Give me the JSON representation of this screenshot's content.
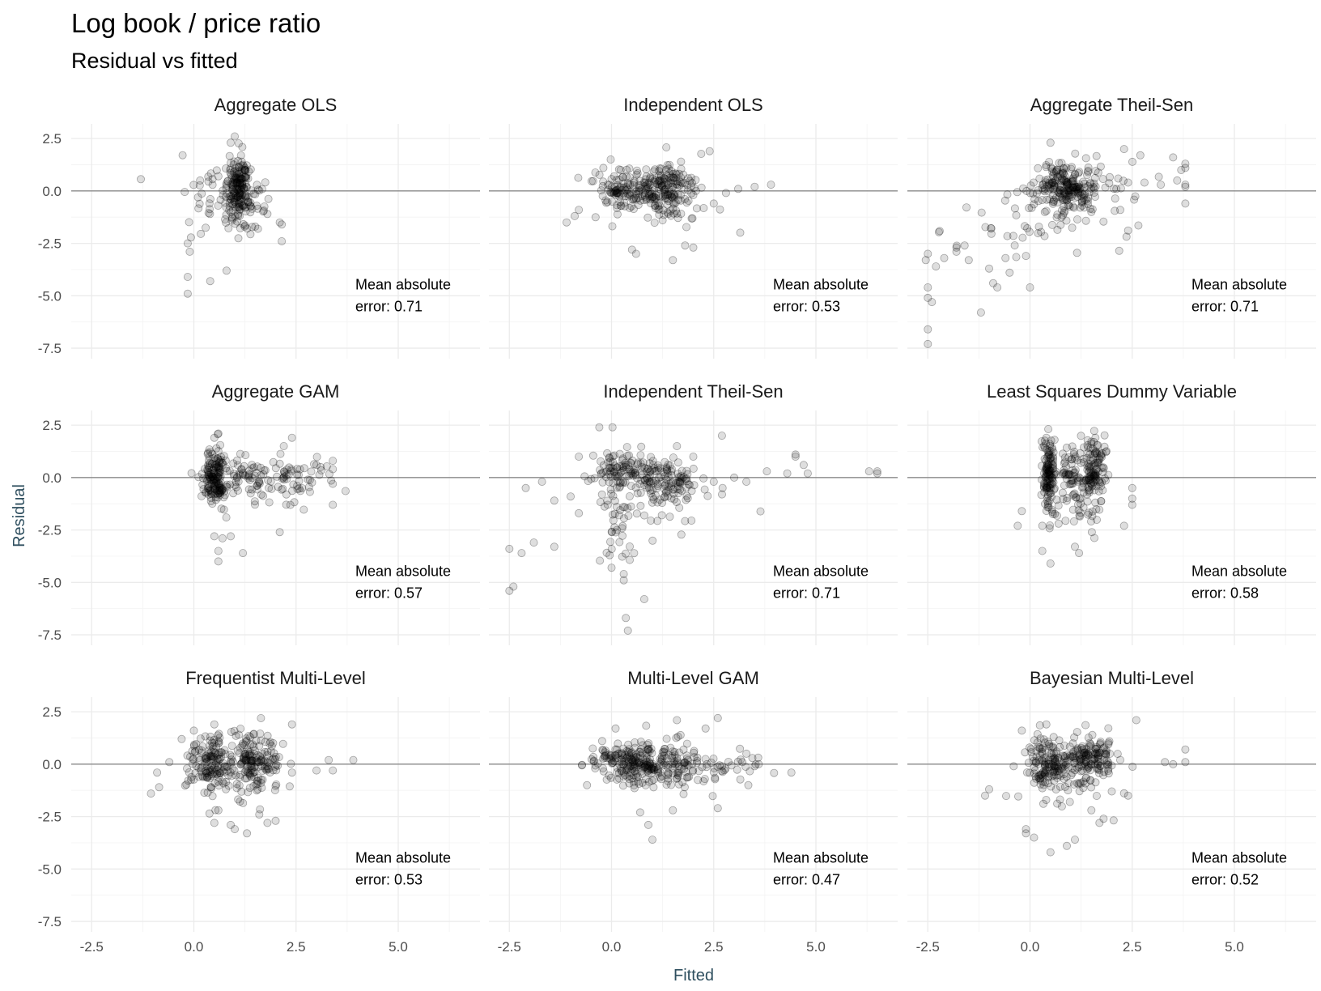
{
  "title": "Log book / price ratio",
  "subtitle": "Residual vs fitted",
  "colors": {
    "background": "#ffffff",
    "grid": "#ebebeb",
    "zero_line": "#8a8a8a",
    "point": "#000000",
    "axis_title": "#2f4f5f"
  },
  "chart_data": {
    "type": "scatter",
    "layout": "facet-grid 3x3",
    "xlabel": "Fitted",
    "ylabel": "Residual",
    "xlim": [
      -3,
      7
    ],
    "ylim": [
      -8,
      3.2
    ],
    "x_ticks": [
      "-2.5",
      "0.0",
      "2.5",
      "5.0"
    ],
    "x_tick_values": [
      -2.5,
      0.0,
      2.5,
      5.0
    ],
    "y_ticks": [
      "2.5",
      "0.0",
      "-2.5",
      "-5.0",
      "-7.5"
    ],
    "y_tick_values": [
      2.5,
      0.0,
      -2.5,
      -5.0,
      -7.5
    ],
    "reference_line": 0,
    "grid": true,
    "point_alpha": "low (semi-transparent)",
    "facets": [
      {
        "name": "Aggregate OLS",
        "mae_line1": "Mean absolute",
        "mae_line2": "error: 0.71",
        "clusters": [
          {
            "cx": 1.1,
            "cy": 0.0,
            "sx": 0.14,
            "sy": 0.85,
            "n": 170
          },
          {
            "cx": 1.3,
            "cy": -0.5,
            "sx": 0.3,
            "sy": 0.7,
            "n": 40
          },
          {
            "cx": 0.5,
            "cy": -0.9,
            "sx": 0.45,
            "sy": 1.0,
            "n": 35
          }
        ],
        "points": [
          [
            -0.15,
            -4.9
          ],
          [
            -0.15,
            -4.1
          ],
          [
            0.4,
            -4.3
          ],
          [
            0.8,
            -3.8
          ],
          [
            -0.15,
            -2.5
          ],
          [
            -0.1,
            -2.9
          ],
          [
            2.15,
            -2.4
          ],
          [
            2.1,
            -1.5
          ],
          [
            2.15,
            -1.6
          ],
          [
            0.9,
            2.3
          ],
          [
            1.0,
            2.6
          ],
          [
            0.6,
            0.7
          ],
          [
            1.5,
            -1.7
          ],
          [
            1.8,
            -1.1
          ]
        ]
      },
      {
        "name": "Independent OLS",
        "mae_line1": "Mean absolute",
        "mae_line2": "error: 0.53",
        "clusters": [
          {
            "cx": 0.3,
            "cy": 0.1,
            "sx": 0.35,
            "sy": 0.45,
            "n": 120
          },
          {
            "cx": 1.45,
            "cy": 0.1,
            "sx": 0.3,
            "sy": 0.6,
            "n": 130
          },
          {
            "cx": 1.0,
            "cy": -0.5,
            "sx": 0.8,
            "sy": 0.8,
            "n": 50
          }
        ],
        "points": [
          [
            -1.1,
            -1.5
          ],
          [
            -0.8,
            -0.9
          ],
          [
            -0.9,
            -1.2
          ],
          [
            3.5,
            0.2
          ],
          [
            3.9,
            0.3
          ],
          [
            3.1,
            0.1
          ],
          [
            2.8,
            -0.1
          ],
          [
            2.0,
            -0.2
          ],
          [
            2.5,
            -0.6
          ],
          [
            1.5,
            -3.3
          ],
          [
            0.6,
            -3.0
          ],
          [
            0.5,
            -2.8
          ],
          [
            1.8,
            -2.6
          ],
          [
            2.0,
            -2.7
          ],
          [
            2.4,
            1.9
          ],
          [
            1.7,
            1.4
          ],
          [
            -0.2,
            1.1
          ]
        ]
      },
      {
        "name": "Aggregate Theil-Sen",
        "mae_line1": "Mean absolute",
        "mae_line2": "error: 0.71",
        "clusters": [
          {
            "cx": 0.85,
            "cy": 0.2,
            "sx": 0.35,
            "sy": 0.5,
            "n": 180
          },
          {
            "cx": 1.3,
            "cy": -0.2,
            "sx": 0.8,
            "sy": 0.8,
            "n": 60
          },
          {
            "cx": 0.0,
            "cy": -1.4,
            "sx": 0.9,
            "sy": 0.9,
            "n": 45
          }
        ],
        "points": [
          [
            -2.5,
            -7.3
          ],
          [
            -2.5,
            -6.6
          ],
          [
            -2.5,
            -5.1
          ],
          [
            -2.4,
            -5.3
          ],
          [
            -2.5,
            -4.6
          ],
          [
            -2.55,
            -3.3
          ],
          [
            -2.5,
            -3.0
          ],
          [
            -2.3,
            -3.6
          ],
          [
            -2.1,
            -3.2
          ],
          [
            -1.8,
            -2.9
          ],
          [
            -1.8,
            -2.7
          ],
          [
            -1.6,
            -2.6
          ],
          [
            -1.2,
            -5.8
          ],
          [
            -0.8,
            -4.6
          ],
          [
            -1.0,
            -3.7
          ],
          [
            -1.5,
            -3.3
          ],
          [
            -0.9,
            -4.4
          ],
          [
            -0.6,
            -3.2
          ],
          [
            -0.5,
            -3.9
          ],
          [
            0.0,
            -4.6
          ],
          [
            -0.1,
            -3.1
          ],
          [
            3.8,
            1.1
          ],
          [
            3.8,
            1.3
          ],
          [
            3.8,
            0.3
          ],
          [
            3.8,
            0.2
          ],
          [
            3.8,
            -0.6
          ],
          [
            3.7,
            1.0
          ],
          [
            3.6,
            0.5
          ],
          [
            3.2,
            0.3
          ],
          [
            3.5,
            1.6
          ],
          [
            2.7,
            1.7
          ],
          [
            2.3,
            2.0
          ],
          [
            2.8,
            0.4
          ],
          [
            2.4,
            0.4
          ],
          [
            0.5,
            2.3
          ]
        ]
      },
      {
        "name": "Aggregate GAM",
        "mae_line1": "Mean absolute",
        "mae_line2": "error: 0.57",
        "clusters": [
          {
            "cx": 0.55,
            "cy": 0.1,
            "sx": 0.12,
            "sy": 0.7,
            "n": 150
          },
          {
            "cx": 1.4,
            "cy": 0.0,
            "sx": 0.6,
            "sy": 0.6,
            "n": 100
          },
          {
            "cx": 2.5,
            "cy": 0.0,
            "sx": 0.5,
            "sy": 0.5,
            "n": 35
          }
        ],
        "points": [
          [
            0.6,
            -4.0
          ],
          [
            0.6,
            -3.5
          ],
          [
            1.2,
            -3.6
          ],
          [
            0.5,
            -2.8
          ],
          [
            0.7,
            -2.9
          ],
          [
            0.9,
            -2.8
          ],
          [
            2.1,
            -2.6
          ],
          [
            3.4,
            0.8
          ],
          [
            3.4,
            0.4
          ],
          [
            3.4,
            -0.3
          ],
          [
            3.4,
            -1.3
          ],
          [
            3.0,
            0.6
          ],
          [
            3.1,
            0.5
          ],
          [
            2.4,
            1.9
          ],
          [
            2.2,
            1.5
          ],
          [
            0.6,
            2.1
          ],
          [
            0.5,
            1.9
          ]
        ]
      },
      {
        "name": "Independent Theil-Sen",
        "mae_line1": "Mean absolute",
        "mae_line2": "error: 0.71",
        "clusters": [
          {
            "cx": 0.2,
            "cy": 0.4,
            "sx": 0.35,
            "sy": 0.5,
            "n": 90
          },
          {
            "cx": 1.3,
            "cy": -0.1,
            "sx": 0.35,
            "sy": 0.5,
            "n": 110
          },
          {
            "cx": 0.2,
            "cy": -2.0,
            "sx": 0.2,
            "sy": 1.5,
            "n": 40
          },
          {
            "cx": 1.3,
            "cy": -1.0,
            "sx": 1.0,
            "sy": 1.0,
            "n": 40
          }
        ],
        "points": [
          [
            -2.5,
            -5.4
          ],
          [
            -2.4,
            -5.2
          ],
          [
            -2.5,
            -3.4
          ],
          [
            -2.2,
            -3.6
          ],
          [
            -1.9,
            -3.1
          ],
          [
            -1.4,
            -3.3
          ],
          [
            -1.4,
            -1.1
          ],
          [
            -1.7,
            -0.2
          ],
          [
            -2.1,
            -0.5
          ],
          [
            -1.0,
            -0.9
          ],
          [
            -0.8,
            -1.7
          ],
          [
            0.4,
            -7.3
          ],
          [
            0.35,
            -6.7
          ],
          [
            0.8,
            -5.8
          ],
          [
            0.3,
            -4.9
          ],
          [
            0.0,
            -4.3
          ],
          [
            0.3,
            -4.6
          ],
          [
            -0.3,
            2.4
          ],
          [
            -0.8,
            1.0
          ],
          [
            2.7,
            2.0
          ],
          [
            3.3,
            -0.2
          ],
          [
            3.8,
            0.3
          ],
          [
            4.3,
            0.2
          ],
          [
            4.7,
            0.6
          ],
          [
            4.8,
            0.2
          ],
          [
            4.5,
            1.0
          ],
          [
            4.5,
            1.1
          ],
          [
            6.5,
            0.3
          ],
          [
            6.3,
            0.3
          ],
          [
            6.5,
            0.2
          ],
          [
            2.5,
            -0.2
          ],
          [
            3.0,
            0.0
          ],
          [
            2.0,
            1.0
          ],
          [
            1.6,
            1.5
          ]
        ]
      },
      {
        "name": "Least Squares Dummy Variable",
        "mae_line1": "Mean absolute",
        "mae_line2": "error: 0.58",
        "clusters": [
          {
            "cx": 0.45,
            "cy": 0.2,
            "sx": 0.09,
            "sy": 0.85,
            "n": 130
          },
          {
            "cx": 1.0,
            "cy": 0.3,
            "sx": 0.15,
            "sy": 0.6,
            "n": 50
          },
          {
            "cx": 1.55,
            "cy": 0.2,
            "sx": 0.18,
            "sy": 0.9,
            "n": 130
          },
          {
            "cx": 1.2,
            "cy": -1.2,
            "sx": 0.3,
            "sy": 0.6,
            "n": 30
          }
        ],
        "points": [
          [
            0.5,
            -4.1
          ],
          [
            0.3,
            -3.5
          ],
          [
            1.2,
            -3.6
          ],
          [
            1.1,
            -3.3
          ],
          [
            0.3,
            -2.3
          ],
          [
            0.7,
            -2.2
          ],
          [
            -0.3,
            -2.3
          ],
          [
            -0.2,
            -1.6
          ],
          [
            2.3,
            -2.3
          ],
          [
            2.5,
            -0.5
          ],
          [
            2.5,
            -1.0
          ],
          [
            2.5,
            -1.3
          ],
          [
            0.4,
            1.9
          ],
          [
            0.6,
            1.8
          ],
          [
            1.6,
            1.9
          ]
        ]
      },
      {
        "name": "Frequentist Multi-Level",
        "mae_line1": "Mean absolute",
        "mae_line2": "error: 0.53",
        "clusters": [
          {
            "cx": 0.45,
            "cy": 0.1,
            "sx": 0.25,
            "sy": 0.6,
            "n": 130
          },
          {
            "cx": 1.5,
            "cy": 0.2,
            "sx": 0.28,
            "sy": 0.6,
            "n": 130
          },
          {
            "cx": 1.0,
            "cy": -0.4,
            "sx": 0.6,
            "sy": 0.8,
            "n": 60
          }
        ],
        "points": [
          [
            -1.05,
            -1.4
          ],
          [
            -0.85,
            -1.1
          ],
          [
            -0.9,
            -0.4
          ],
          [
            -0.6,
            0.1
          ],
          [
            -0.3,
            1.2
          ],
          [
            0.5,
            -2.8
          ],
          [
            0.9,
            -2.9
          ],
          [
            1.0,
            -3.1
          ],
          [
            1.3,
            -3.3
          ],
          [
            1.8,
            -2.8
          ],
          [
            2.0,
            -2.7
          ],
          [
            1.6,
            -2.4
          ],
          [
            0.6,
            -2.2
          ],
          [
            3.3,
            0.2
          ],
          [
            3.9,
            0.2
          ],
          [
            3.0,
            -0.3
          ],
          [
            2.4,
            -0.4
          ],
          [
            3.4,
            -0.3
          ],
          [
            2.4,
            1.9
          ],
          [
            0.0,
            1.6
          ],
          [
            0.5,
            1.9
          ]
        ]
      },
      {
        "name": "Multi-Level GAM",
        "mae_line1": "Mean absolute",
        "mae_line2": "error: 0.47",
        "clusters": [
          {
            "cx": 0.3,
            "cy": 0.1,
            "sx": 0.4,
            "sy": 0.5,
            "n": 140
          },
          {
            "cx": 1.3,
            "cy": 0.0,
            "sx": 0.5,
            "sy": 0.6,
            "n": 150
          },
          {
            "cx": 2.5,
            "cy": -0.1,
            "sx": 0.6,
            "sy": 0.5,
            "n": 40
          }
        ],
        "points": [
          [
            -0.6,
            -1.0
          ],
          [
            -0.4,
            -0.2
          ],
          [
            1.0,
            -3.6
          ],
          [
            0.9,
            -2.9
          ],
          [
            0.7,
            -2.3
          ],
          [
            2.6,
            -2.1
          ],
          [
            1.5,
            -2.2
          ],
          [
            2.6,
            2.2
          ],
          [
            2.3,
            1.7
          ],
          [
            1.6,
            2.1
          ],
          [
            3.3,
            0.5
          ],
          [
            3.5,
            -0.1
          ],
          [
            3.6,
            0.0
          ],
          [
            4.4,
            -0.4
          ],
          [
            3.2,
            0.1
          ],
          [
            0.1,
            1.7
          ]
        ]
      },
      {
        "name": "Bayesian Multi-Level",
        "mae_line1": "Mean absolute",
        "mae_line2": "error: 0.52",
        "clusters": [
          {
            "cx": 0.45,
            "cy": 0.1,
            "sx": 0.25,
            "sy": 0.6,
            "n": 130
          },
          {
            "cx": 1.45,
            "cy": 0.2,
            "sx": 0.28,
            "sy": 0.6,
            "n": 130
          },
          {
            "cx": 1.0,
            "cy": -0.5,
            "sx": 0.6,
            "sy": 0.9,
            "n": 60
          }
        ],
        "points": [
          [
            -1.1,
            -1.5
          ],
          [
            -1.0,
            -1.2
          ],
          [
            -0.4,
            -0.1
          ],
          [
            0.5,
            -4.2
          ],
          [
            0.9,
            -3.9
          ],
          [
            0.1,
            -3.5
          ],
          [
            -0.1,
            -3.3
          ],
          [
            -0.1,
            -3.1
          ],
          [
            1.1,
            -3.6
          ],
          [
            1.7,
            -2.8
          ],
          [
            1.8,
            -2.6
          ],
          [
            1.5,
            -2.2
          ],
          [
            2.4,
            -1.5
          ],
          [
            2.0,
            -1.3
          ],
          [
            3.3,
            0.1
          ],
          [
            3.8,
            0.7
          ],
          [
            3.8,
            0.1
          ],
          [
            3.5,
            0.0
          ],
          [
            2.6,
            2.1
          ],
          [
            -0.2,
            1.6
          ],
          [
            0.4,
            1.9
          ]
        ]
      }
    ]
  }
}
